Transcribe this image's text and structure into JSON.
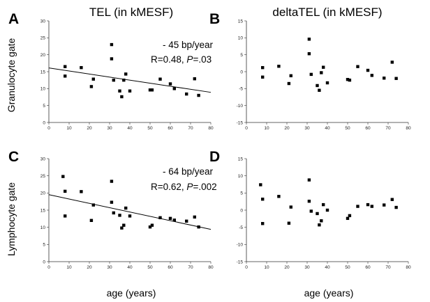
{
  "figure": {
    "col_titles": [
      "TEL (in kMESF)",
      "deltaTEL (in kMESF)"
    ],
    "row_labels": [
      "Granulocyte gate",
      "Lymphocyte gate"
    ],
    "xlabel": "age (years)"
  },
  "chart_data": [
    {
      "panel": "A",
      "type": "scatter",
      "xlim": [
        0,
        80
      ],
      "ylim": [
        0,
        30
      ],
      "xticks": [
        0,
        10,
        20,
        30,
        40,
        50,
        60,
        70,
        80
      ],
      "yticks": [
        0,
        5,
        10,
        15,
        20,
        25,
        30
      ],
      "points": [
        [
          8,
          16.5
        ],
        [
          8,
          13.7
        ],
        [
          16,
          16.2
        ],
        [
          21,
          10.6
        ],
        [
          22,
          12.8
        ],
        [
          31,
          23
        ],
        [
          31,
          18.8
        ],
        [
          32,
          12.5
        ],
        [
          35,
          9.3
        ],
        [
          36,
          7.6
        ],
        [
          37,
          12.5
        ],
        [
          38,
          14.3
        ],
        [
          40,
          9.3
        ],
        [
          50,
          9.6
        ],
        [
          51,
          9.6
        ],
        [
          55,
          12.8
        ],
        [
          60,
          11.4
        ],
        [
          62,
          10
        ],
        [
          68,
          8.4
        ],
        [
          72,
          12.9
        ],
        [
          74,
          8
        ]
      ],
      "trendline": [
        [
          0,
          16.1
        ],
        [
          80,
          8.9
        ]
      ],
      "annotations": {
        "slope": "- 45 bp/year",
        "stat_prefix": "R=0.48, ",
        "p_symbol": "P",
        "p_value": "=.03"
      }
    },
    {
      "panel": "B",
      "type": "scatter",
      "xlim": [
        0,
        80
      ],
      "ylim": [
        -15,
        15
      ],
      "xticks": [
        0,
        10,
        20,
        30,
        40,
        50,
        60,
        70,
        80
      ],
      "yticks": [
        -15,
        -10,
        -5,
        0,
        5,
        10,
        15
      ],
      "points": [
        [
          8,
          1.2
        ],
        [
          8,
          -1.6
        ],
        [
          16,
          1.6
        ],
        [
          21,
          -3.5
        ],
        [
          22,
          -1.2
        ],
        [
          31,
          9.6
        ],
        [
          31,
          5.3
        ],
        [
          32,
          -0.8
        ],
        [
          35,
          -4.1
        ],
        [
          36,
          -5.5
        ],
        [
          37,
          -0.3
        ],
        [
          38,
          1.3
        ],
        [
          40,
          -3.3
        ],
        [
          50,
          -2.3
        ],
        [
          51,
          -2.5
        ],
        [
          55,
          1.5
        ],
        [
          60,
          0.4
        ],
        [
          62,
          -1.1
        ],
        [
          68,
          -1.9
        ],
        [
          72,
          2.8
        ],
        [
          74,
          -2
        ]
      ]
    },
    {
      "panel": "C",
      "type": "scatter",
      "xlim": [
        0,
        80
      ],
      "ylim": [
        0,
        30
      ],
      "xticks": [
        0,
        10,
        20,
        30,
        40,
        50,
        60,
        70,
        80
      ],
      "yticks": [
        0,
        5,
        10,
        15,
        20,
        25,
        30
      ],
      "points": [
        [
          7,
          24.8
        ],
        [
          8,
          20.5
        ],
        [
          8,
          13.3
        ],
        [
          16,
          20.4
        ],
        [
          21,
          12
        ],
        [
          22,
          16.5
        ],
        [
          31,
          23.4
        ],
        [
          31,
          17.3
        ],
        [
          32,
          14.2
        ],
        [
          35,
          13.5
        ],
        [
          36,
          9.8
        ],
        [
          37,
          10.6
        ],
        [
          38,
          15.6
        ],
        [
          40,
          13.3
        ],
        [
          50,
          10.1
        ],
        [
          51,
          10.6
        ],
        [
          55,
          12.8
        ],
        [
          60,
          12.6
        ],
        [
          62,
          12.1
        ],
        [
          68,
          11.8
        ],
        [
          72,
          13
        ],
        [
          74,
          10.1
        ]
      ],
      "trendline": [
        [
          0,
          19.5
        ],
        [
          80,
          9.4
        ]
      ],
      "annotations": {
        "slope": "- 64 bp/year",
        "stat_prefix": "R=0.62, ",
        "p_symbol": "P",
        "p_value": "=.002"
      }
    },
    {
      "panel": "D",
      "type": "scatter",
      "xlim": [
        0,
        80
      ],
      "ylim": [
        -15,
        15
      ],
      "xticks": [
        0,
        10,
        20,
        30,
        40,
        50,
        60,
        70,
        80
      ],
      "yticks": [
        -15,
        -10,
        -5,
        0,
        5,
        10,
        15
      ],
      "points": [
        [
          7,
          7.4
        ],
        [
          8,
          3.2
        ],
        [
          8,
          -3.9
        ],
        [
          16,
          4
        ],
        [
          21,
          -3.8
        ],
        [
          22,
          0.9
        ],
        [
          31,
          8.8
        ],
        [
          31,
          2.6
        ],
        [
          32,
          -0.3
        ],
        [
          35,
          -1
        ],
        [
          36,
          -4.3
        ],
        [
          37,
          -3.1
        ],
        [
          38,
          1.6
        ],
        [
          40,
          0
        ],
        [
          50,
          -2.4
        ],
        [
          51,
          -1.6
        ],
        [
          55,
          1.1
        ],
        [
          60,
          1.6
        ],
        [
          62,
          1.1
        ],
        [
          68,
          1.5
        ],
        [
          72,
          3.1
        ],
        [
          74,
          0.8
        ]
      ]
    }
  ]
}
